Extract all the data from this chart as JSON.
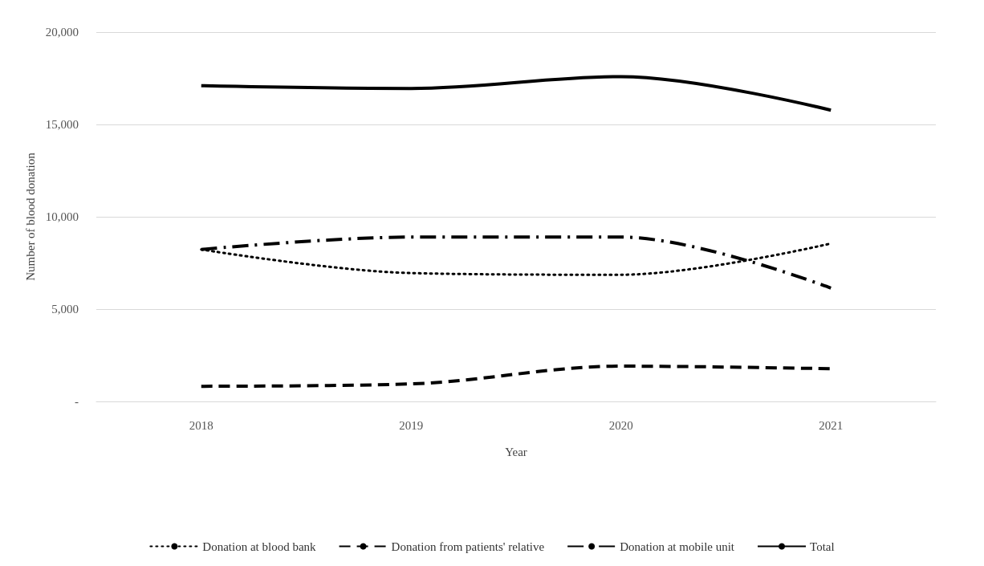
{
  "chart_data": {
    "type": "line",
    "xlabel": "Year",
    "ylabel": "Number of blood donation",
    "categories": [
      "2018",
      "2019",
      "2020",
      "2021"
    ],
    "series": [
      {
        "name": "Donation at blood bank",
        "color": "#000000",
        "line_style": "dotted",
        "values": [
          8230,
          6950,
          6860,
          8550
        ]
      },
      {
        "name": "Donation from patients' relative",
        "color": "#000000",
        "line_style": "dashed",
        "values": [
          820,
          950,
          1910,
          1770
        ]
      },
      {
        "name": "Donation at mobile unit",
        "color": "#000000",
        "line_style": "dashdot",
        "values": [
          8230,
          8900,
          8900,
          6140
        ]
      },
      {
        "name": "Total",
        "color": "#000000",
        "line_style": "solid",
        "values": [
          17100,
          16950,
          17590,
          15770
        ]
      }
    ],
    "ylim": [
      0,
      20000
    ],
    "yticks": [
      {
        "value": 0,
        "label": "-"
      },
      {
        "value": 5000,
        "label": "5,000"
      },
      {
        "value": 10000,
        "label": "10,000"
      },
      {
        "value": 15000,
        "label": "15,000"
      },
      {
        "value": 20000,
        "label": "20,000"
      }
    ],
    "grid": "y",
    "legend": "bottom",
    "marker": "none"
  }
}
